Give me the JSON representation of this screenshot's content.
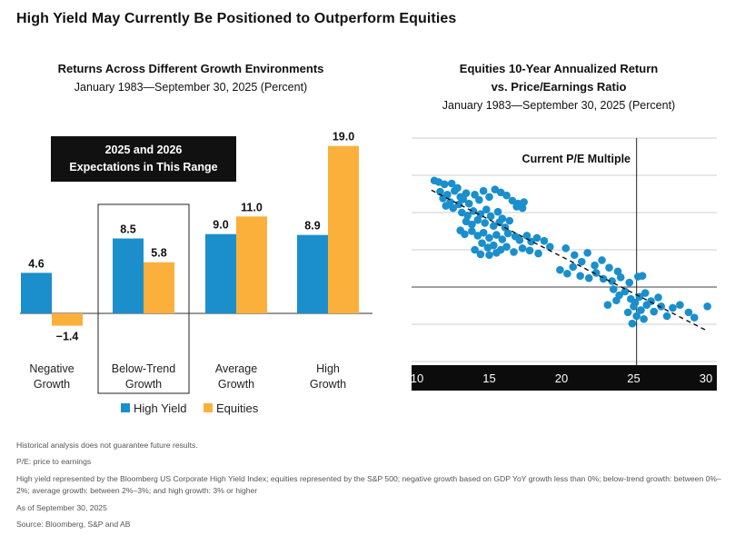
{
  "page": {
    "title": "High Yield May Currently Be Positioned to Outperform Equities"
  },
  "left_panel": {
    "title": "Returns Across Different Growth Environments",
    "subtitle": "January 1983—September 30, 2025 (Percent)",
    "callout": [
      "2025 and 2026",
      "Expectations in This Range"
    ]
  },
  "right_panel": {
    "title_line1": "Equities 10-Year Annualized Return",
    "title_line2": "vs. Price/Earnings Ratio",
    "subtitle": "January 1983—September 30, 2025 (Percent)",
    "annotation": "Current P/E Multiple"
  },
  "notes": [
    "Historical analysis does not guarantee future results.",
    "P/E: price to earnings",
    "High yield represented by the Bloomberg US Corporate High Yield Index; equities represented by the S&P 500; negative growth based on GDP YoY growth less than 0%; below-trend growth: between 0%–2%; average growth: between 2%–3%; and high growth: 3% or higher",
    "As of September 30, 2025",
    "Source: Bloomberg, S&P and AB"
  ],
  "colors": {
    "high_yield": "#1a8fcc",
    "equities": "#fbb03b",
    "scatter": "#1a8fcc"
  },
  "chart_data": [
    {
      "type": "bar",
      "categories": [
        [
          "Negative",
          "Growth"
        ],
        [
          "Below-Trend",
          "Growth"
        ],
        [
          "Average",
          "Growth"
        ],
        [
          "High",
          "Growth"
        ]
      ],
      "series": [
        {
          "name": "High Yield",
          "values": [
            4.6,
            8.5,
            9.0,
            8.9
          ],
          "labels": [
            "4.6",
            "8.5",
            "9.0",
            "8.9"
          ]
        },
        {
          "name": "Equities",
          "values": [
            -1.4,
            5.8,
            11.0,
            19.0
          ],
          "labels": [
            "−1.4",
            "5.8",
            "11.0",
            "19.0"
          ]
        }
      ],
      "ylim": [
        -2,
        20
      ],
      "grid": false,
      "legend": "bottom",
      "highlighted_category": "Below-Trend Growth"
    },
    {
      "type": "scatter",
      "xlim": [
        10,
        30
      ],
      "ylim": [
        -10,
        20
      ],
      "xticks": [
        "10",
        "15",
        "20",
        "25",
        "30"
      ],
      "yticks": [
        "20",
        "15",
        "10",
        "5",
        "0",
        "−5",
        "−10"
      ],
      "grid": true,
      "vline_x": 25.2,
      "trend_line": {
        "x": [
          11,
          30
        ],
        "y": [
          13,
          -5.8
        ],
        "style": "dashed"
      },
      "points": [
        [
          11.2,
          14.3
        ],
        [
          11.5,
          14.1
        ],
        [
          11.9,
          13.8
        ],
        [
          12.4,
          13.9
        ],
        [
          12.8,
          13.3
        ],
        [
          11.6,
          12.8
        ],
        [
          12.1,
          12.4
        ],
        [
          12.6,
          12.9
        ],
        [
          13.0,
          12.1
        ],
        [
          13.4,
          12.6
        ],
        [
          11.8,
          11.9
        ],
        [
          12.3,
          11.4
        ],
        [
          12.9,
          11.1
        ],
        [
          13.2,
          11.8
        ],
        [
          12.0,
          10.9
        ],
        [
          12.5,
          10.6
        ],
        [
          13.6,
          11.2
        ],
        [
          14.0,
          12.4
        ],
        [
          14.3,
          11.7
        ],
        [
          14.6,
          12.9
        ],
        [
          15.0,
          12.1
        ],
        [
          15.4,
          13.1
        ],
        [
          15.8,
          12.7
        ],
        [
          16.2,
          12.3
        ],
        [
          16.6,
          11.6
        ],
        [
          17.0,
          11.2
        ],
        [
          17.4,
          11.4
        ],
        [
          16.9,
          10.8
        ],
        [
          17.3,
          10.6
        ],
        [
          13.1,
          10.0
        ],
        [
          13.5,
          9.6
        ],
        [
          13.9,
          10.2
        ],
        [
          14.4,
          9.8
        ],
        [
          14.8,
          10.4
        ],
        [
          15.1,
          9.5
        ],
        [
          15.6,
          10.1
        ],
        [
          15.9,
          9.2
        ],
        [
          13.4,
          8.8
        ],
        [
          13.8,
          8.4
        ],
        [
          14.2,
          9.0
        ],
        [
          14.7,
          8.6
        ],
        [
          15.3,
          8.2
        ],
        [
          15.7,
          8.7
        ],
        [
          16.1,
          8.0
        ],
        [
          16.4,
          8.9
        ],
        [
          13.0,
          7.6
        ],
        [
          13.3,
          7.1
        ],
        [
          13.8,
          7.5
        ],
        [
          14.2,
          6.9
        ],
        [
          14.6,
          7.3
        ],
        [
          15.0,
          6.6
        ],
        [
          15.5,
          7.0
        ],
        [
          15.9,
          6.4
        ],
        [
          16.3,
          7.2
        ],
        [
          16.8,
          6.8
        ],
        [
          17.1,
          6.3
        ],
        [
          17.6,
          6.9
        ],
        [
          17.9,
          6.1
        ],
        [
          18.3,
          6.6
        ],
        [
          18.8,
          6.2
        ],
        [
          19.2,
          5.4
        ],
        [
          14.5,
          5.9
        ],
        [
          14.9,
          5.3
        ],
        [
          15.3,
          5.6
        ],
        [
          15.8,
          5.0
        ],
        [
          16.2,
          5.4
        ],
        [
          16.7,
          4.7
        ],
        [
          17.3,
          5.2
        ],
        [
          17.8,
          4.9
        ],
        [
          18.4,
          4.5
        ],
        [
          14.0,
          5.0
        ],
        [
          14.4,
          4.4
        ],
        [
          15.0,
          4.3
        ],
        [
          15.5,
          4.6
        ],
        [
          20.3,
          5.2
        ],
        [
          20.9,
          4.3
        ],
        [
          21.4,
          3.4
        ],
        [
          21.8,
          4.6
        ],
        [
          22.3,
          2.9
        ],
        [
          22.8,
          3.6
        ],
        [
          23.3,
          2.6
        ],
        [
          23.9,
          2.1
        ],
        [
          19.9,
          2.3
        ],
        [
          20.4,
          1.8
        ],
        [
          20.8,
          2.7
        ],
        [
          21.3,
          1.5
        ],
        [
          21.9,
          1.2
        ],
        [
          22.4,
          1.9
        ],
        [
          22.9,
          1.1
        ],
        [
          23.5,
          0.8
        ],
        [
          24.1,
          1.3
        ],
        [
          24.7,
          0.6
        ],
        [
          25.3,
          1.4
        ],
        [
          25.6,
          1.5
        ],
        [
          23.6,
          -0.3
        ],
        [
          24.0,
          -1.1
        ],
        [
          24.4,
          -0.6
        ],
        [
          24.8,
          -1.6
        ],
        [
          25.1,
          -2.1
        ],
        [
          25.4,
          -1.3
        ],
        [
          25.8,
          -0.8
        ],
        [
          26.2,
          -1.9
        ],
        [
          25.0,
          -2.6
        ],
        [
          25.5,
          -3.1
        ],
        [
          25.9,
          -2.4
        ],
        [
          26.4,
          -3.3
        ],
        [
          24.6,
          -3.4
        ],
        [
          25.2,
          -3.9
        ],
        [
          25.7,
          -4.3
        ],
        [
          24.9,
          -4.9
        ],
        [
          26.9,
          -2.6
        ],
        [
          27.3,
          -3.9
        ],
        [
          27.7,
          -2.8
        ],
        [
          28.2,
          -2.4
        ],
        [
          28.8,
          -3.4
        ],
        [
          29.2,
          -4.1
        ],
        [
          30.1,
          -2.6
        ],
        [
          23.2,
          -2.4
        ],
        [
          23.8,
          -1.8
        ],
        [
          26.7,
          -1.4
        ]
      ]
    }
  ]
}
